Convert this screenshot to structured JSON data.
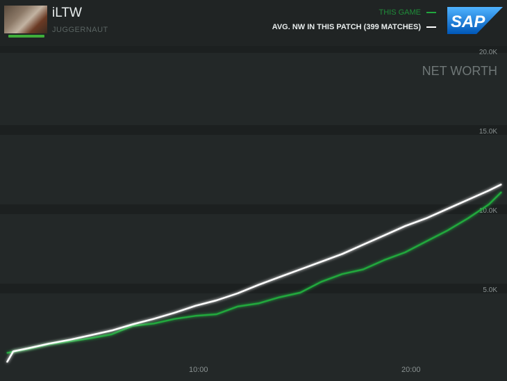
{
  "header": {
    "player_name": "iLTW",
    "hero_name": "JUGGERNAUT",
    "legend": {
      "this_game": "THIS GAME",
      "avg": "AVG. NW IN THIS PATCH (399 MATCHES)"
    },
    "logo": "SAP"
  },
  "colors": {
    "this_game": "#21a83d",
    "avg": "#ffffff",
    "background": "#232828"
  },
  "chart_data": {
    "type": "line",
    "title": "NET WORTH",
    "xlabel": "",
    "ylabel": "",
    "xlim": [
      0,
      25
    ],
    "ylim": [
      0,
      20000
    ],
    "x_ticks": [
      "10:00",
      "20:00"
    ],
    "y_ticks": [
      "5.0K",
      "10.0K",
      "15.0K",
      "20.0K"
    ],
    "grid": "horizontal bands",
    "legend_position": "top-right",
    "series": [
      {
        "name": "THIS GAME",
        "color": "#21a83d",
        "x": [
          0,
          1,
          2,
          3,
          4,
          5,
          6,
          7,
          8,
          9,
          10,
          11,
          12,
          13,
          14,
          15,
          16,
          17,
          18,
          19,
          20,
          21,
          22,
          23,
          23.6
        ],
        "y": [
          600,
          850,
          1150,
          1350,
          1550,
          1800,
          2350,
          2500,
          2800,
          3000,
          3100,
          3600,
          3800,
          4200,
          4500,
          5200,
          5700,
          6000,
          6600,
          7100,
          7800,
          8500,
          9300,
          10200,
          11000
        ]
      },
      {
        "name": "AVG. NW IN THIS PATCH (399 MATCHES)",
        "color": "#ffffff",
        "x": [
          0,
          0.3,
          1,
          2,
          3,
          4,
          5,
          6,
          7,
          8,
          9,
          10,
          11,
          12,
          13,
          14,
          15,
          16,
          17,
          18,
          19,
          20,
          21,
          22,
          23,
          23.6
        ],
        "y": [
          0,
          700,
          900,
          1200,
          1450,
          1750,
          2050,
          2450,
          2800,
          3200,
          3650,
          4000,
          4450,
          5000,
          5500,
          6000,
          6500,
          7000,
          7600,
          8200,
          8800,
          9300,
          9900,
          10500,
          11100,
          11500
        ]
      }
    ]
  }
}
